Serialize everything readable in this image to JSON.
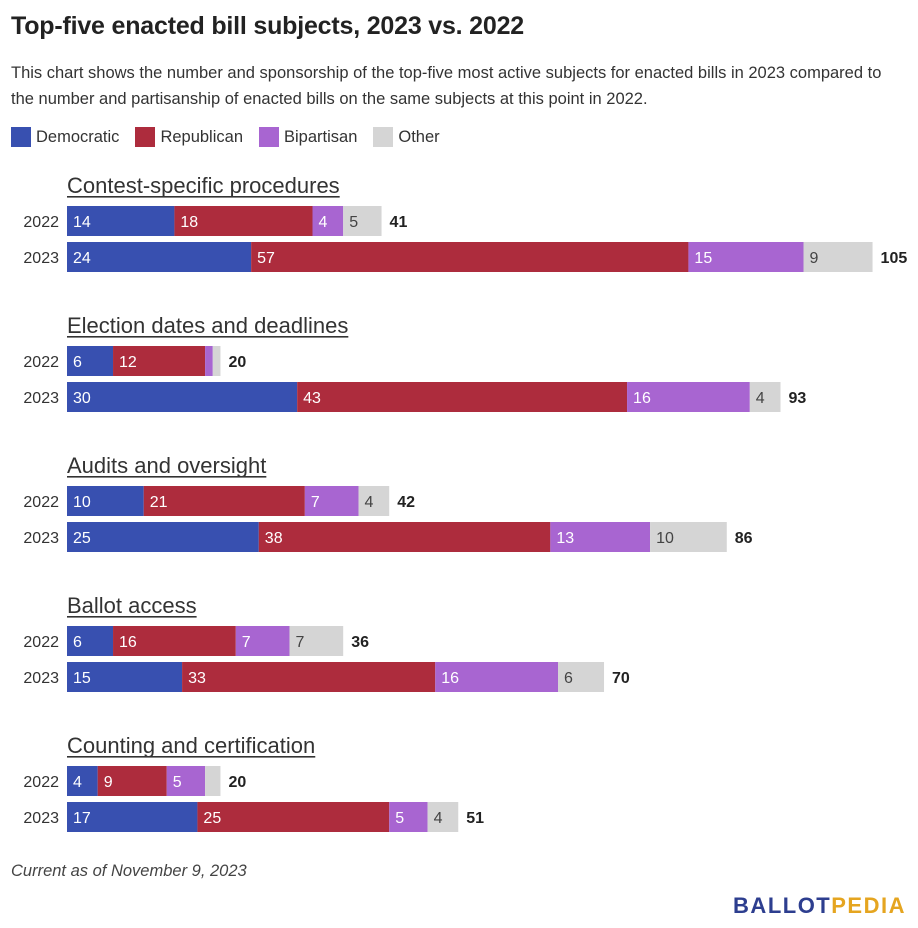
{
  "title": "Top-five enacted bill subjects, 2023 vs. 2022",
  "subtitle": "This chart shows the number and sponsorship of the top-five most active subjects for enacted bills in 2023 compared to the number and partisanship of enacted bills on the same subjects at this point in 2022.",
  "footnote": "Current as of November 9, 2023",
  "logo": {
    "part1": "BALLOT",
    "part2": "PEDIA"
  },
  "colors": {
    "democratic": "#3850b0",
    "republican": "#ad2c3d",
    "bipartisan": "#a865d1",
    "other": "#d5d5d5"
  },
  "chart_data": {
    "type": "bar",
    "orientation": "horizontal",
    "stacked": true,
    "legend_position": "top-left",
    "grid": false,
    "legend": [
      {
        "key": "democratic",
        "label": "Democratic"
      },
      {
        "key": "republican",
        "label": "Republican"
      },
      {
        "key": "bipartisan",
        "label": "Bipartisan"
      },
      {
        "key": "other",
        "label": "Other"
      }
    ],
    "groups": [
      {
        "subject": "Contest-specific procedures",
        "rows": [
          {
            "year": "2022",
            "democratic": 14,
            "republican": 18,
            "bipartisan": 4,
            "other": 5,
            "total": 41
          },
          {
            "year": "2023",
            "democratic": 24,
            "republican": 57,
            "bipartisan": 15,
            "other": 9,
            "total": 105
          }
        ]
      },
      {
        "subject": "Election dates and deadlines",
        "rows": [
          {
            "year": "2022",
            "democratic": 6,
            "republican": 12,
            "bipartisan": 1,
            "other": 1,
            "total": 20
          },
          {
            "year": "2023",
            "democratic": 30,
            "republican": 43,
            "bipartisan": 16,
            "other": 4,
            "total": 93
          }
        ]
      },
      {
        "subject": "Audits and oversight",
        "rows": [
          {
            "year": "2022",
            "democratic": 10,
            "republican": 21,
            "bipartisan": 7,
            "other": 4,
            "total": 42
          },
          {
            "year": "2023",
            "democratic": 25,
            "republican": 38,
            "bipartisan": 13,
            "other": 10,
            "total": 86
          }
        ]
      },
      {
        "subject": "Ballot access",
        "rows": [
          {
            "year": "2022",
            "democratic": 6,
            "republican": 16,
            "bipartisan": 7,
            "other": 7,
            "total": 36
          },
          {
            "year": "2023",
            "democratic": 15,
            "republican": 33,
            "bipartisan": 16,
            "other": 6,
            "total": 70
          }
        ]
      },
      {
        "subject": "Counting and certification",
        "rows": [
          {
            "year": "2022",
            "democratic": 4,
            "republican": 9,
            "bipartisan": 5,
            "other": 2,
            "total": 20
          },
          {
            "year": "2023",
            "democratic": 17,
            "republican": 25,
            "bipartisan": 5,
            "other": 4,
            "total": 51
          }
        ]
      }
    ]
  }
}
